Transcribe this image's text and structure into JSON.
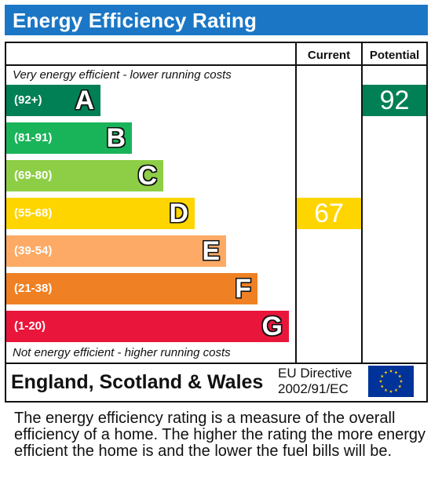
{
  "title": "Energy Efficiency Rating",
  "columns": {
    "current": "Current",
    "potential": "Potential"
  },
  "notes": {
    "top": "Very energy efficient - lower running costs",
    "bottom": "Not energy efficient - higher running costs"
  },
  "chart_data": {
    "type": "bar",
    "categories": [
      "A",
      "B",
      "C",
      "D",
      "E",
      "F",
      "G"
    ],
    "ranges": [
      "(92+)",
      "(81-91)",
      "(69-80)",
      "(55-68)",
      "(39-54)",
      "(21-38)",
      "(1-20)"
    ],
    "colors": [
      "#008054",
      "#19b459",
      "#8dce46",
      "#ffd500",
      "#fcaa65",
      "#ef8023",
      "#e9153b"
    ],
    "current": {
      "value": 67,
      "band": "D",
      "color": "#ffd500"
    },
    "potential": {
      "value": 92,
      "band": "A",
      "color": "#008054"
    }
  },
  "footer": {
    "region": "England, Scotland & Wales",
    "directive_line1": "EU Directive",
    "directive_line2": "2002/91/EC",
    "flag_colors": {
      "field": "#003399",
      "stars": "#ffcc00"
    }
  },
  "description": "The energy efficiency rating is a measure of the overall efficiency of a home. The higher the rating the more energy efficient the home is and the lower the fuel bills will be."
}
